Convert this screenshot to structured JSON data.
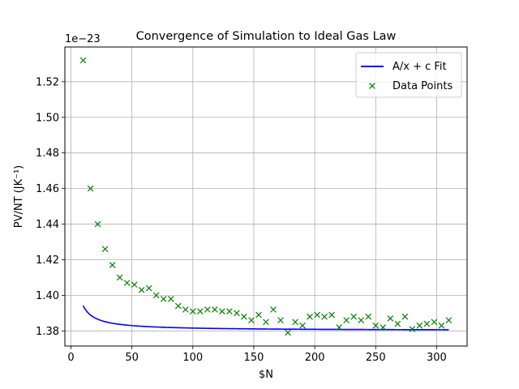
{
  "chart_data": {
    "type": "scatter",
    "title": "Convergence of Simulation to Ideal Gas Law",
    "xlabel": "$N",
    "ylabel": "PV/NT (JK⁻¹)",
    "offset_label": "1e−23",
    "xlim": [
      -5,
      325
    ],
    "ylim": [
      1.3715,
      1.5395
    ],
    "x_ticks": [
      0,
      50,
      100,
      150,
      200,
      250,
      300
    ],
    "y_ticks": [
      1.38,
      1.4,
      1.42,
      1.44,
      1.46,
      1.48,
      1.5,
      1.52
    ],
    "y_tick_labels": [
      "1.38",
      "1.40",
      "1.42",
      "1.44",
      "1.46",
      "1.48",
      "1.50",
      "1.52"
    ],
    "grid": true,
    "legend": {
      "position": "top-right",
      "entries": [
        {
          "label": "A/x + c Fit",
          "kind": "line",
          "color": "#0000ff"
        },
        {
          "label": "Data Points",
          "kind": "marker",
          "color": "#008000"
        }
      ]
    },
    "series": [
      {
        "name": "A/x + c Fit",
        "kind": "line",
        "color": "#0000ff",
        "model": {
          "A": 0.1397,
          "c": 1.3802,
          "x_range": [
            10,
            310
          ]
        }
      },
      {
        "name": "Data Points",
        "kind": "scatter",
        "marker": "x",
        "color": "#008000",
        "x": [
          10,
          16,
          22,
          28,
          34,
          40,
          46,
          52,
          58,
          64,
          70,
          76,
          82,
          88,
          94,
          100,
          106,
          112,
          118,
          124,
          130,
          136,
          142,
          148,
          154,
          160,
          166,
          172,
          178,
          184,
          190,
          196,
          202,
          208,
          214,
          220,
          226,
          232,
          238,
          244,
          250,
          256,
          262,
          268,
          274,
          280,
          286,
          292,
          298,
          304,
          310
        ],
        "y": [
          1.532,
          1.46,
          1.44,
          1.426,
          1.417,
          1.41,
          1.407,
          1.406,
          1.403,
          1.404,
          1.4,
          1.398,
          1.398,
          1.394,
          1.392,
          1.391,
          1.391,
          1.392,
          1.392,
          1.391,
          1.391,
          1.39,
          1.388,
          1.386,
          1.389,
          1.385,
          1.392,
          1.386,
          1.379,
          1.385,
          1.383,
          1.388,
          1.389,
          1.388,
          1.389,
          1.382,
          1.386,
          1.388,
          1.386,
          1.388,
          1.383,
          1.382,
          1.387,
          1.384,
          1.388,
          1.381,
          1.383,
          1.384,
          1.385,
          1.383,
          1.386
        ]
      }
    ]
  }
}
